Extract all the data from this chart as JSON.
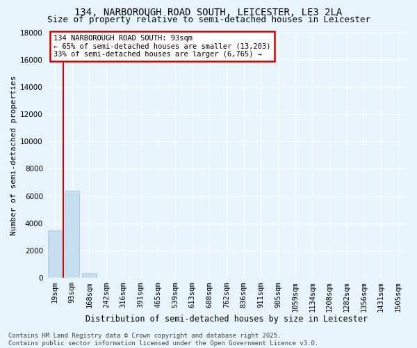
{
  "title_line1": "134, NARBOROUGH ROAD SOUTH, LEICESTER, LE3 2LA",
  "title_line2": "Size of property relative to semi-detached houses in Leicester",
  "xlabel": "Distribution of semi-detached houses by size in Leicester",
  "ylabel": "Number of semi-detached properties",
  "annotation_title": "134 NARBOROUGH ROAD SOUTH: 93sqm",
  "annotation_line2": "← 65% of semi-detached houses are smaller (13,203)",
  "annotation_line3": "33% of semi-detached houses are larger (6,765) →",
  "footer_line1": "Contains HM Land Registry data © Crown copyright and database right 2025.",
  "footer_line2": "Contains public sector information licensed under the Open Government Licence v3.0.",
  "categories": [
    "19sqm",
    "93sqm",
    "168sqm",
    "242sqm",
    "316sqm",
    "391sqm",
    "465sqm",
    "539sqm",
    "613sqm",
    "688sqm",
    "762sqm",
    "836sqm",
    "911sqm",
    "985sqm",
    "1059sqm",
    "1134sqm",
    "1208sqm",
    "1282sqm",
    "1356sqm",
    "1431sqm",
    "1505sqm"
  ],
  "values": [
    3500,
    6400,
    380,
    0,
    0,
    0,
    0,
    0,
    0,
    0,
    0,
    0,
    0,
    0,
    0,
    0,
    0,
    0,
    0,
    0,
    0
  ],
  "bar_color": "#c5dff0",
  "red_line_x": 0.5,
  "ylim": [
    0,
    18000
  ],
  "yticks": [
    0,
    2000,
    4000,
    6000,
    8000,
    10000,
    12000,
    14000,
    16000,
    18000
  ],
  "background_color": "#e8f4fc",
  "grid_color": "#ffffff",
  "annotation_box_facecolor": "#ffffff",
  "annotation_box_edgecolor": "#cc0000",
  "red_line_color": "#cc0000",
  "title_fontsize": 10,
  "subtitle_fontsize": 9,
  "xlabel_fontsize": 8.5,
  "ylabel_fontsize": 8,
  "tick_fontsize": 7.5,
  "annot_fontsize": 7.5,
  "footer_fontsize": 6.5
}
